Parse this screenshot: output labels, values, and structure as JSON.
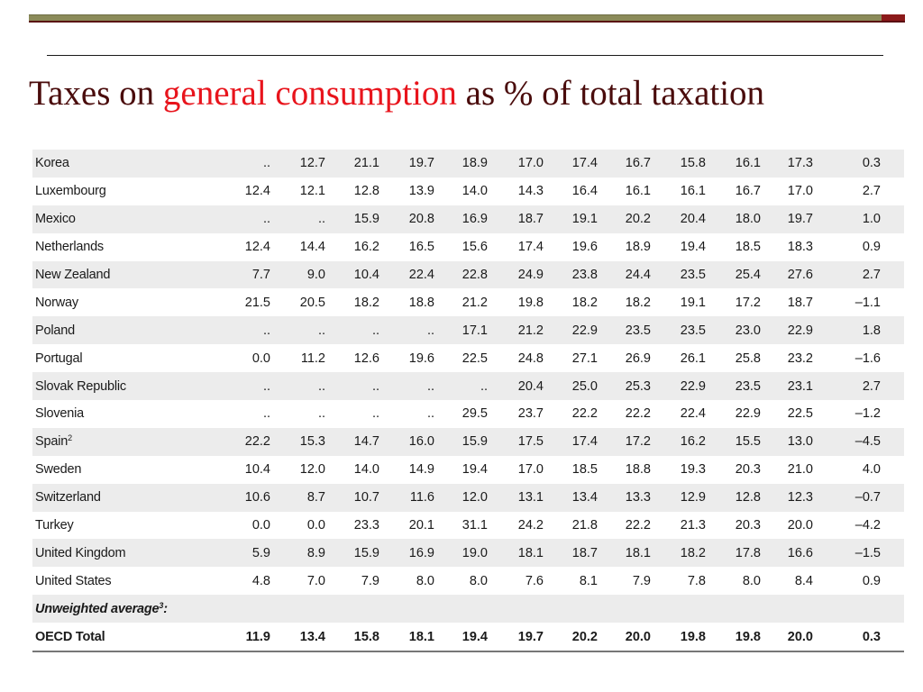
{
  "title": {
    "part1": "Taxes on ",
    "highlight": "general consumption",
    "part2": " as % of total taxation"
  },
  "table": {
    "rows": [
      {
        "country": "Korea",
        "values": [
          "..",
          "12.7",
          "21.1",
          "19.7",
          "18.9",
          "17.0",
          "17.4",
          "16.7",
          "15.8",
          "16.1",
          "17.3",
          "0.3"
        ]
      },
      {
        "country": "Luxembourg",
        "values": [
          "12.4",
          "12.1",
          "12.8",
          "13.9",
          "14.0",
          "14.3",
          "16.4",
          "16.1",
          "16.1",
          "16.7",
          "17.0",
          "2.7"
        ]
      },
      {
        "country": "Mexico",
        "values": [
          "..",
          "..",
          "15.9",
          "20.8",
          "16.9",
          "18.7",
          "19.1",
          "20.2",
          "20.4",
          "18.0",
          "19.7",
          "1.0"
        ]
      },
      {
        "country": "Netherlands",
        "values": [
          "12.4",
          "14.4",
          "16.2",
          "16.5",
          "15.6",
          "17.4",
          "19.6",
          "18.9",
          "19.4",
          "18.5",
          "18.3",
          "0.9"
        ]
      },
      {
        "country": "New Zealand",
        "values": [
          "7.7",
          "9.0",
          "10.4",
          "22.4",
          "22.8",
          "24.9",
          "23.8",
          "24.4",
          "23.5",
          "25.4",
          "27.6",
          "2.7"
        ]
      },
      {
        "country": "Norway",
        "values": [
          "21.5",
          "20.5",
          "18.2",
          "18.8",
          "21.2",
          "19.8",
          "18.2",
          "18.2",
          "19.1",
          "17.2",
          "18.7",
          "–1.1"
        ]
      },
      {
        "country": "Poland",
        "values": [
          "..",
          "..",
          "..",
          "..",
          "17.1",
          "21.2",
          "22.9",
          "23.5",
          "23.5",
          "23.0",
          "22.9",
          "1.8"
        ]
      },
      {
        "country": "Portugal",
        "values": [
          "0.0",
          "11.2",
          "12.6",
          "19.6",
          "22.5",
          "24.8",
          "27.1",
          "26.9",
          "26.1",
          "25.8",
          "23.2",
          "–1.6"
        ]
      },
      {
        "country": "Slovak Republic",
        "values": [
          "..",
          "..",
          "..",
          "..",
          "..",
          "20.4",
          "25.0",
          "25.3",
          "22.9",
          "23.5",
          "23.1",
          "2.7"
        ]
      },
      {
        "country": "Slovenia",
        "values": [
          "..",
          "..",
          "..",
          "..",
          "29.5",
          "23.7",
          "22.2",
          "22.2",
          "22.4",
          "22.9",
          "22.5",
          "–1.2"
        ]
      },
      {
        "country": "Spain",
        "sup": "2",
        "values": [
          "22.2",
          "15.3",
          "14.7",
          "16.0",
          "15.9",
          "17.5",
          "17.4",
          "17.2",
          "16.2",
          "15.5",
          "13.0",
          "–4.5"
        ]
      },
      {
        "country": "Sweden",
        "values": [
          "10.4",
          "12.0",
          "14.0",
          "14.9",
          "19.4",
          "17.0",
          "18.5",
          "18.8",
          "19.3",
          "20.3",
          "21.0",
          "4.0"
        ]
      },
      {
        "country": "Switzerland",
        "values": [
          "10.6",
          "8.7",
          "10.7",
          "11.6",
          "12.0",
          "13.1",
          "13.4",
          "13.3",
          "12.9",
          "12.8",
          "12.3",
          "–0.7"
        ]
      },
      {
        "country": "Turkey",
        "values": [
          "0.0",
          "0.0",
          "23.3",
          "20.1",
          "31.1",
          "24.2",
          "21.8",
          "22.2",
          "21.3",
          "20.3",
          "20.0",
          "–4.2"
        ]
      },
      {
        "country": "United Kingdom",
        "values": [
          "5.9",
          "8.9",
          "15.9",
          "16.9",
          "19.0",
          "18.1",
          "18.7",
          "18.1",
          "18.2",
          "17.8",
          "16.6",
          "–1.5"
        ]
      },
      {
        "country": "United States",
        "values": [
          "4.8",
          "7.0",
          "7.9",
          "8.0",
          "8.0",
          "7.6",
          "8.1",
          "7.9",
          "7.8",
          "8.0",
          "8.4",
          "0.9"
        ]
      }
    ],
    "average_label": "Unweighted average",
    "average_sup": "3",
    "average_suffix": ":",
    "total": {
      "country": "OECD Total",
      "values": [
        "11.9",
        "13.4",
        "15.8",
        "18.1",
        "19.4",
        "19.7",
        "20.2",
        "20.0",
        "19.8",
        "19.8",
        "20.0",
        "0.3"
      ]
    }
  }
}
